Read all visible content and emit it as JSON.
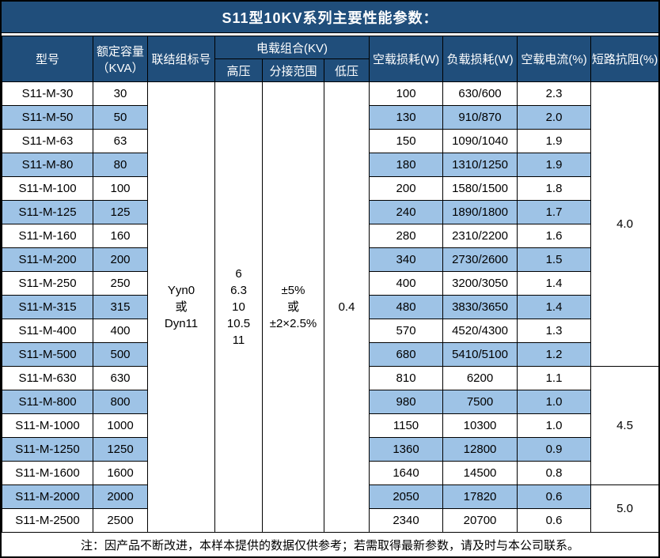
{
  "title": "S11型10KV系列主要性能参数：",
  "note": "注：因产品不断改进，本样本提供的数据仅供参考；若需取得最新参数，请及时与本公司联系。",
  "colors": {
    "header_bg": "#204E7B",
    "alt_row_bg": "#9EC3E6",
    "border": "#000000",
    "header_text": "#FFFFFF",
    "body_text": "#000000"
  },
  "table": {
    "headers": {
      "model": "型号",
      "capacity_line1": "额定容量",
      "capacity_line2": "（KVA）",
      "connection": "联结组标号",
      "voltage_group": "电载组合(KV)",
      "high_voltage": "高压",
      "tap_range": "分接范围",
      "low_voltage": "低压",
      "no_load_loss": "空载损耗(W)",
      "load_loss": "负载损耗(W)",
      "no_load_current": "空载电流(%)",
      "short_circuit_impedance": "短路抗阻(%)"
    },
    "merged": {
      "connection_lines": [
        "Yyn0",
        "或",
        "Dyn11"
      ],
      "high_voltage_lines": [
        "6",
        "6.3",
        "10",
        "10.5",
        "11"
      ],
      "tap_range_lines": [
        "±5%",
        "或",
        "±2×2.5%"
      ],
      "low_voltage": "0.4",
      "impedance_groups": [
        {
          "value": "4.0",
          "span": 12
        },
        {
          "value": "4.5",
          "span": 5
        },
        {
          "value": "5.0",
          "span": 2
        }
      ]
    },
    "rows": [
      {
        "model": "S11-M-30",
        "capacity": "30",
        "no_load_loss": "100",
        "load_loss": "630/600",
        "no_load_current": "2.3"
      },
      {
        "model": "S11-M-50",
        "capacity": "50",
        "no_load_loss": "130",
        "load_loss": "910/870",
        "no_load_current": "2.0"
      },
      {
        "model": "S11-M-63",
        "capacity": "63",
        "no_load_loss": "150",
        "load_loss": "1090/1040",
        "no_load_current": "1.9"
      },
      {
        "model": "S11-M-80",
        "capacity": "80",
        "no_load_loss": "180",
        "load_loss": "1310/1250",
        "no_load_current": "1.9"
      },
      {
        "model": "S11-M-100",
        "capacity": "100",
        "no_load_loss": "200",
        "load_loss": "1580/1500",
        "no_load_current": "1.8"
      },
      {
        "model": "S11-M-125",
        "capacity": "125",
        "no_load_loss": "240",
        "load_loss": "1890/1800",
        "no_load_current": "1.7"
      },
      {
        "model": "S11-M-160",
        "capacity": "160",
        "no_load_loss": "280",
        "load_loss": "2310/2200",
        "no_load_current": "1.6"
      },
      {
        "model": "S11-M-200",
        "capacity": "200",
        "no_load_loss": "340",
        "load_loss": "2730/2600",
        "no_load_current": "1.5"
      },
      {
        "model": "S11-M-250",
        "capacity": "250",
        "no_load_loss": "400",
        "load_loss": "3200/3050",
        "no_load_current": "1.4"
      },
      {
        "model": "S11-M-315",
        "capacity": "315",
        "no_load_loss": "480",
        "load_loss": "3830/3650",
        "no_load_current": "1.4"
      },
      {
        "model": "S11-M-400",
        "capacity": "400",
        "no_load_loss": "570",
        "load_loss": "4520/4300",
        "no_load_current": "1.3"
      },
      {
        "model": "S11-M-500",
        "capacity": "500",
        "no_load_loss": "680",
        "load_loss": "5410/5100",
        "no_load_current": "1.2"
      },
      {
        "model": "S11-M-630",
        "capacity": "630",
        "no_load_loss": "810",
        "load_loss": "6200",
        "no_load_current": "1.1"
      },
      {
        "model": "S11-M-800",
        "capacity": "800",
        "no_load_loss": "980",
        "load_loss": "7500",
        "no_load_current": "1.0"
      },
      {
        "model": "S11-M-1000",
        "capacity": "1000",
        "no_load_loss": "1150",
        "load_loss": "10300",
        "no_load_current": "1.0"
      },
      {
        "model": "S11-M-1250",
        "capacity": "1250",
        "no_load_loss": "1360",
        "load_loss": "12800",
        "no_load_current": "0.9"
      },
      {
        "model": "S11-M-1600",
        "capacity": "1600",
        "no_load_loss": "1640",
        "load_loss": "14500",
        "no_load_current": "0.8"
      },
      {
        "model": "S11-M-2000",
        "capacity": "2000",
        "no_load_loss": "2050",
        "load_loss": "17820",
        "no_load_current": "0.6"
      },
      {
        "model": "S11-M-2500",
        "capacity": "2500",
        "no_load_loss": "2340",
        "load_loss": "20700",
        "no_load_current": "0.6"
      }
    ]
  }
}
